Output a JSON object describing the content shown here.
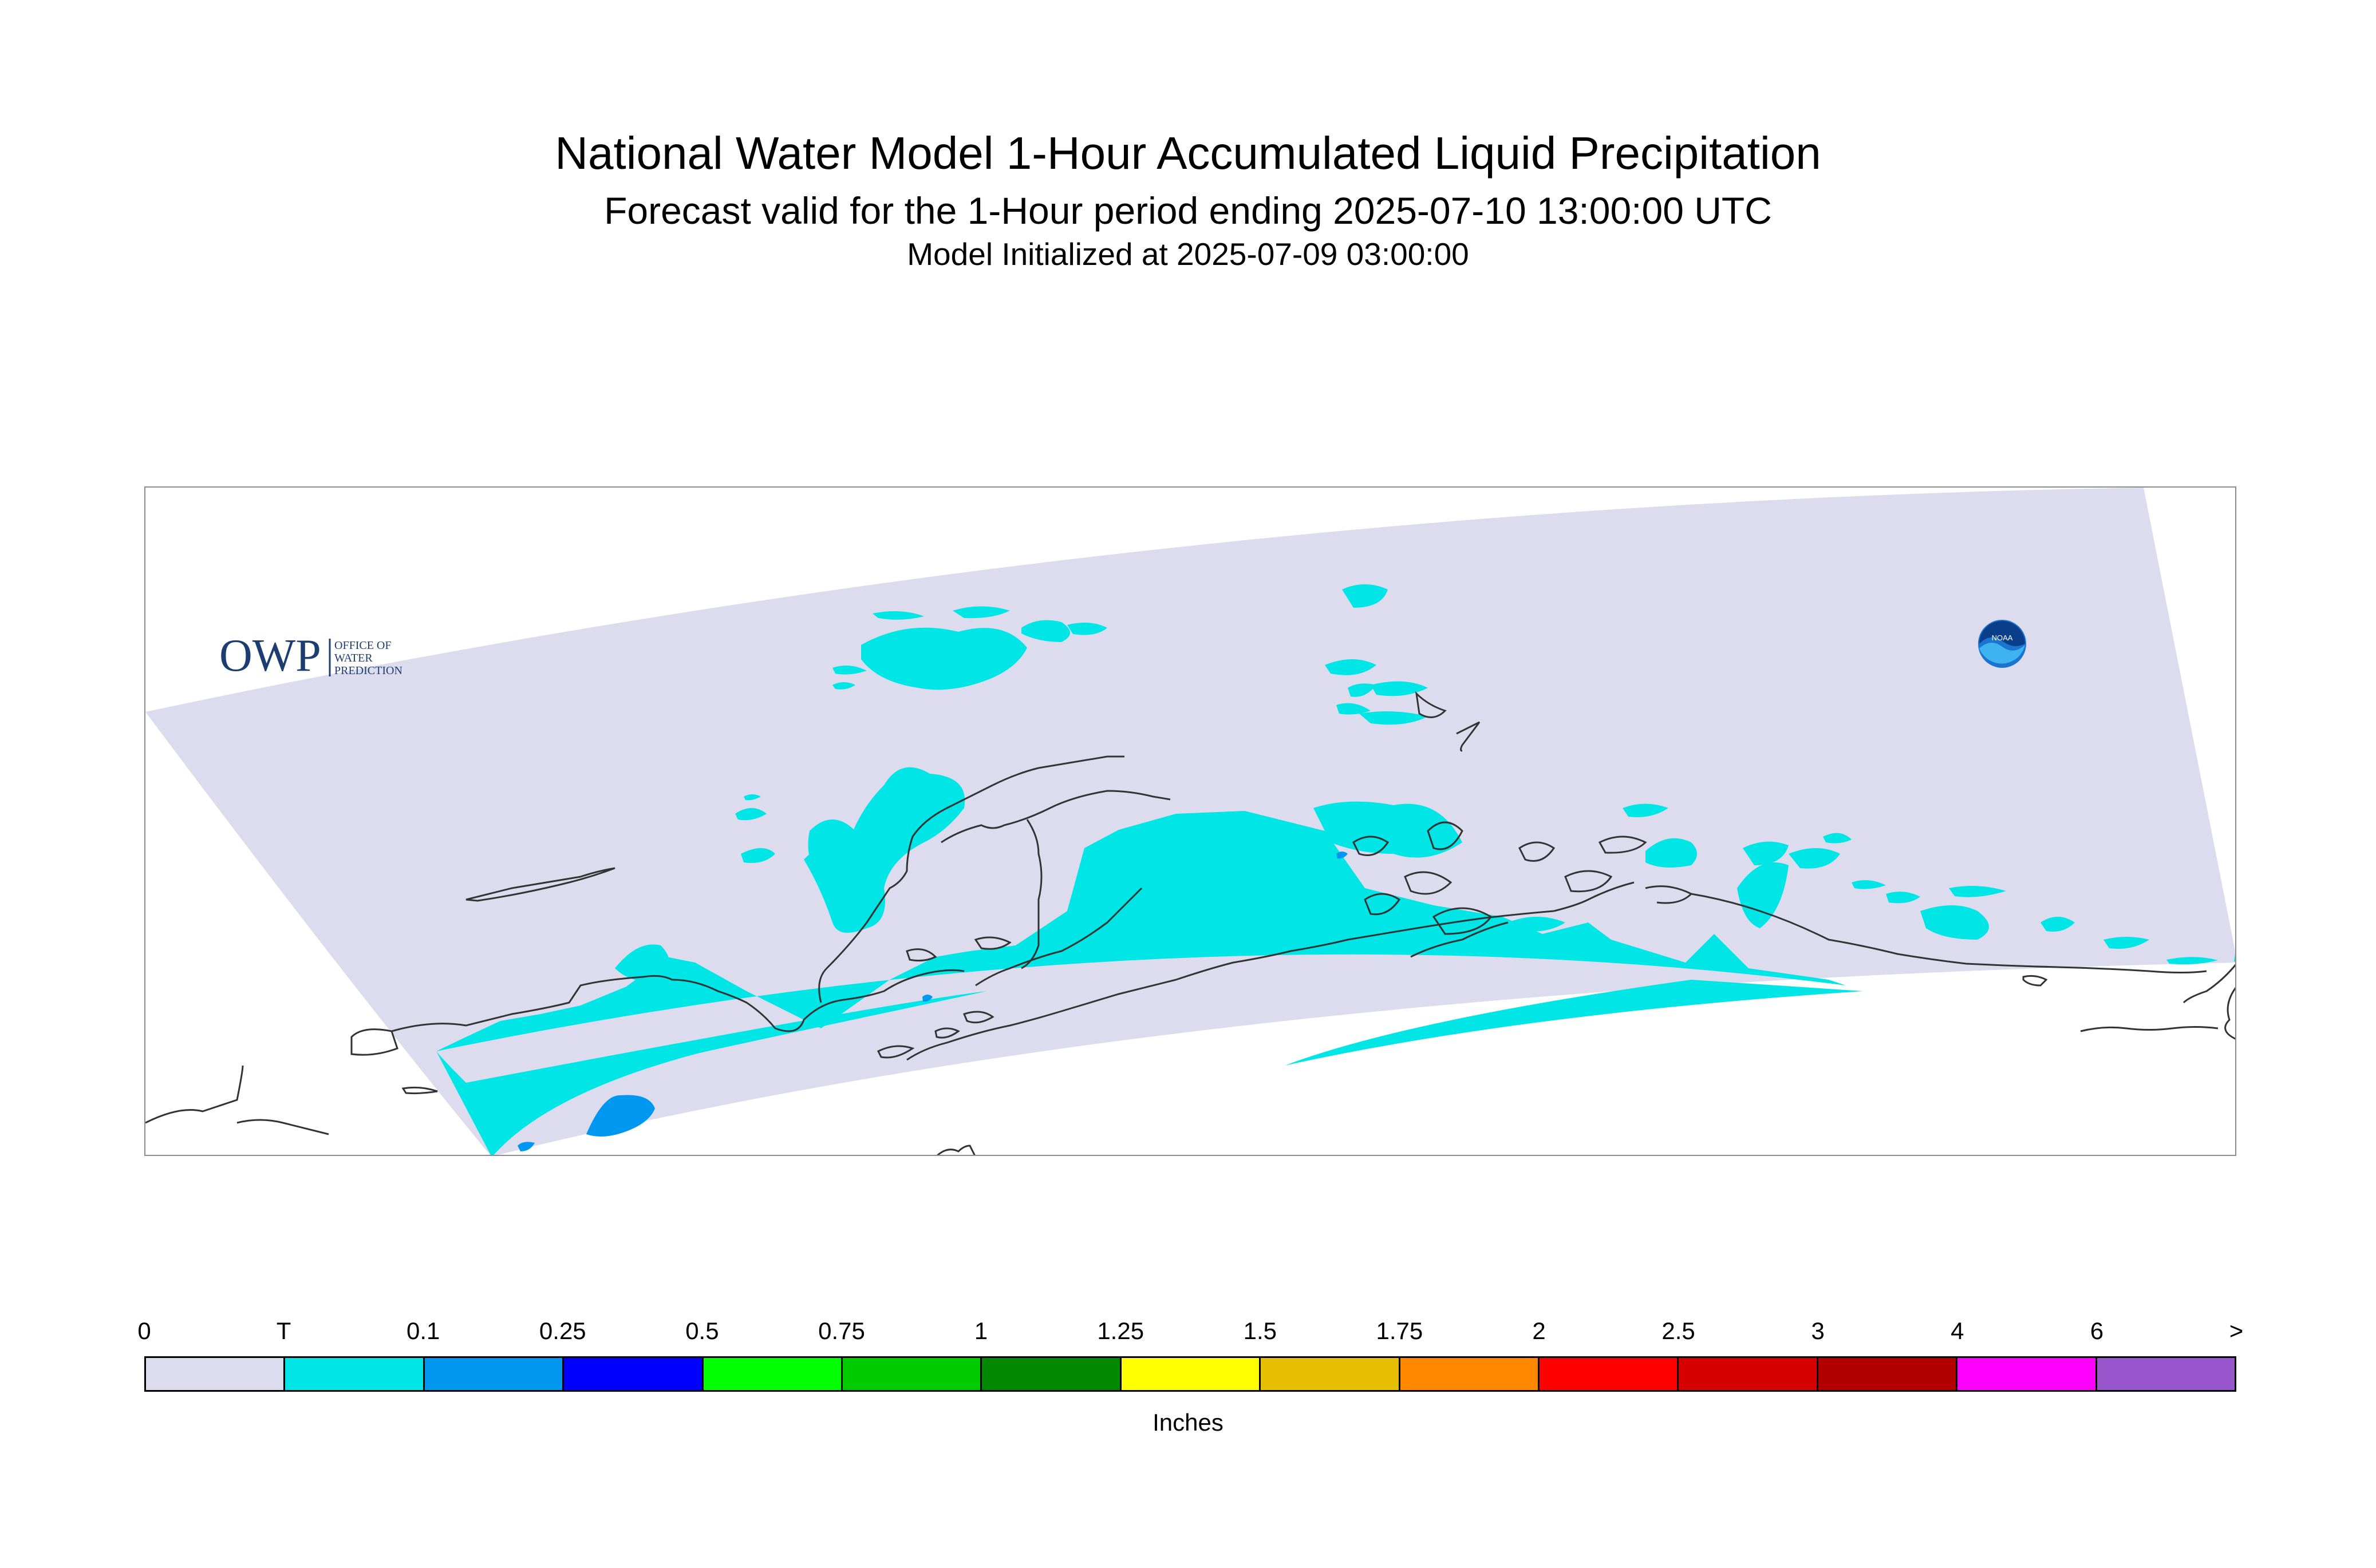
{
  "title": "National Water Model 1-Hour Accumulated Liquid Precipitation",
  "subtitle": "Forecast valid for the 1-Hour period ending 2025-07-10 13:00:00 UTC",
  "init_text": "Model Initialized at 2025-07-09 03:00:00",
  "map": {
    "domain_fill": "#dcdcee",
    "precip_trace_color": "#00e5e5",
    "precip_01_color": "#0097f0",
    "coastline_color": "#333333",
    "region": "Alaska (south-central coast, Gulf of Alaska)"
  },
  "logos": {
    "owp_text": "OWP",
    "owp_sub": [
      "OFFICE OF",
      "WATER",
      "PREDICTION"
    ],
    "noaa_text": "NOAA"
  },
  "legend": {
    "tick_labels": [
      "0",
      "T",
      "0.1",
      "0.25",
      "0.5",
      "0.75",
      "1",
      "1.25",
      "1.5",
      "1.75",
      "2",
      "2.5",
      "3",
      "4",
      "6",
      ">"
    ],
    "colors": [
      "#dcdcee",
      "#00e5e5",
      "#0097f0",
      "#0000ff",
      "#00ff00",
      "#00cc00",
      "#008800",
      "#ffff00",
      "#e6bf00",
      "#ff8800",
      "#ff0000",
      "#d60000",
      "#b20000",
      "#ff00ff",
      "#9955cc"
    ],
    "units": "Inches"
  }
}
